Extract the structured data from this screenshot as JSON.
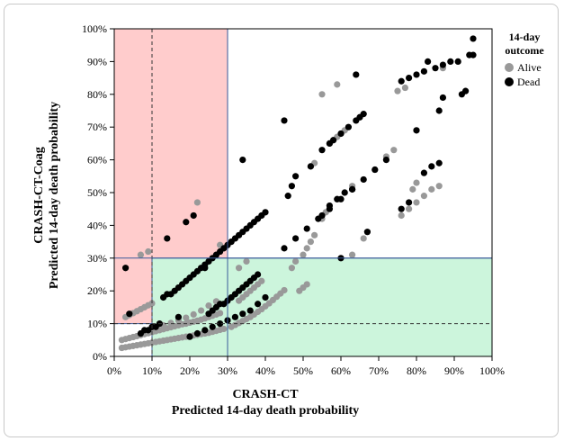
{
  "chart_data": {
    "type": "scatter",
    "xlabel_line1": "CRASH-CT",
    "xlabel_line2": "Predicted 14-day death probability",
    "ylabel_line1": "CRASH-CT-Coag",
    "ylabel_line2": "Predicted 14-day death probability",
    "xlim": [
      0,
      100
    ],
    "ylim": [
      0,
      100
    ],
    "x_ticks": [
      "0%",
      "10%",
      "20%",
      "30%",
      "40%",
      "50%",
      "60%",
      "70%",
      "80%",
      "90%",
      "100%"
    ],
    "y_ticks": [
      "0%",
      "10%",
      "20%",
      "30%",
      "40%",
      "50%",
      "60%",
      "70%",
      "80%",
      "90%",
      "100%"
    ],
    "grid": false,
    "legend": {
      "title_line1": "14-day",
      "title_line2": "outcome",
      "placement": "right",
      "entries": [
        {
          "label": "Alive",
          "color": "#999999"
        },
        {
          "label": "Dead",
          "color": "#000000"
        }
      ]
    },
    "shaded_regions": [
      {
        "x": [
          0,
          30
        ],
        "y": [
          10,
          100
        ],
        "color": "#ffcccc"
      },
      {
        "x": [
          10,
          100
        ],
        "y": [
          0,
          30
        ],
        "color": "#ccf5dc"
      }
    ],
    "reference_lines": [
      {
        "orientation": "vertical",
        "value": 10,
        "style": "dashed"
      },
      {
        "orientation": "horizontal",
        "value": 10,
        "style": "dashed"
      },
      {
        "orientation": "vertical",
        "value": 30,
        "style": "solid"
      },
      {
        "orientation": "horizontal",
        "value": 30,
        "style": "solid"
      }
    ],
    "series": [
      {
        "name": "Alive",
        "color": "#999999",
        "points": [
          [
            2,
            2.6
          ],
          [
            3,
            2.8
          ],
          [
            4,
            3.0
          ],
          [
            5,
            3.2
          ],
          [
            6,
            3.4
          ],
          [
            7,
            3.6
          ],
          [
            8,
            3.8
          ],
          [
            9,
            4.0
          ],
          [
            10,
            4.2
          ],
          [
            11,
            4.4
          ],
          [
            12,
            4.6
          ],
          [
            13,
            4.8
          ],
          [
            14,
            5.0
          ],
          [
            15,
            5.2
          ],
          [
            16,
            5.4
          ],
          [
            17,
            5.6
          ],
          [
            18,
            5.8
          ],
          [
            19,
            6.0
          ],
          [
            20,
            6.2
          ],
          [
            21,
            6.4
          ],
          [
            22,
            6.6
          ],
          [
            23,
            6.8
          ],
          [
            24,
            7.0
          ],
          [
            25,
            7.2
          ],
          [
            26,
            7.5
          ],
          [
            27,
            7.8
          ],
          [
            28,
            8.1
          ],
          [
            29,
            8.4
          ],
          [
            2,
            5.0
          ],
          [
            3,
            5.3
          ],
          [
            4,
            5.6
          ],
          [
            5,
            5.9
          ],
          [
            6,
            6.2
          ],
          [
            7,
            6.5
          ],
          [
            8,
            6.8
          ],
          [
            9,
            7.1
          ],
          [
            10,
            7.4
          ],
          [
            11,
            7.7
          ],
          [
            12,
            8.0
          ],
          [
            13,
            8.3
          ],
          [
            14,
            8.6
          ],
          [
            15,
            8.9
          ],
          [
            16,
            9.2
          ],
          [
            17,
            9.5
          ],
          [
            18,
            9.8
          ],
          [
            19,
            10.0
          ],
          [
            20,
            10.3
          ],
          [
            21,
            10.6
          ],
          [
            22,
            10.9
          ],
          [
            23,
            11.2
          ],
          [
            24,
            11.6
          ],
          [
            25,
            12.0
          ],
          [
            26,
            12.4
          ],
          [
            27,
            12.8
          ],
          [
            28,
            13.2
          ],
          [
            3,
            12.0
          ],
          [
            4,
            12.6
          ],
          [
            5,
            13.2
          ],
          [
            6,
            13.8
          ],
          [
            7,
            14.4
          ],
          [
            8,
            15.0
          ],
          [
            9,
            15.6
          ],
          [
            10,
            16.2
          ],
          [
            13,
            9.5
          ],
          [
            15,
            10.2
          ],
          [
            17,
            11.0
          ],
          [
            19,
            11.8
          ],
          [
            21,
            12.8
          ],
          [
            23,
            14.0
          ],
          [
            25,
            15.5
          ],
          [
            27,
            16.8
          ],
          [
            31,
            9.0
          ],
          [
            32,
            9.6
          ],
          [
            33,
            10.2
          ],
          [
            34,
            10.8
          ],
          [
            35,
            11.4
          ],
          [
            36,
            12.0
          ],
          [
            37,
            12.8
          ],
          [
            38,
            13.6
          ],
          [
            39,
            14.4
          ],
          [
            40,
            15.3
          ],
          [
            41,
            16.2
          ],
          [
            42,
            17.2
          ],
          [
            43,
            18.2
          ],
          [
            44,
            19.2
          ],
          [
            45,
            20.2
          ],
          [
            33,
            17
          ],
          [
            34,
            18
          ],
          [
            35,
            19
          ],
          [
            36,
            20
          ],
          [
            37,
            21
          ],
          [
            38,
            22
          ],
          [
            39,
            23
          ],
          [
            49,
            20
          ],
          [
            50,
            21
          ],
          [
            51,
            22
          ],
          [
            7,
            31
          ],
          [
            9,
            32
          ],
          [
            22,
            47
          ],
          [
            28,
            34
          ],
          [
            33,
            27
          ],
          [
            35,
            29
          ],
          [
            47,
            27
          ],
          [
            48,
            29
          ],
          [
            50,
            31
          ],
          [
            51,
            33
          ],
          [
            52,
            35
          ],
          [
            53,
            37
          ],
          [
            55,
            42
          ],
          [
            56,
            44
          ],
          [
            57,
            46
          ],
          [
            59,
            48
          ],
          [
            61,
            50
          ],
          [
            63,
            52
          ],
          [
            66,
            36
          ],
          [
            67,
            38
          ],
          [
            69,
            57
          ],
          [
            72,
            61
          ],
          [
            74,
            63
          ],
          [
            52,
            58
          ],
          [
            53,
            59
          ],
          [
            57,
            65
          ],
          [
            58,
            66
          ],
          [
            59,
            67
          ],
          [
            60,
            68
          ],
          [
            61,
            69
          ],
          [
            55,
            80
          ],
          [
            59,
            83
          ],
          [
            75,
            81
          ],
          [
            77,
            82
          ],
          [
            79,
            51
          ],
          [
            80,
            53
          ],
          [
            86,
            52
          ],
          [
            87,
            88
          ],
          [
            63,
            31
          ],
          [
            76,
            43
          ],
          [
            78,
            45
          ],
          [
            80,
            47
          ],
          [
            82,
            49
          ],
          [
            84,
            51
          ]
        ]
      },
      {
        "name": "Dead",
        "color": "#000000",
        "points": [
          [
            3,
            27
          ],
          [
            4,
            13
          ],
          [
            7,
            7
          ],
          [
            8,
            8
          ],
          [
            9,
            8
          ],
          [
            10,
            9
          ],
          [
            11,
            9
          ],
          [
            12,
            10
          ],
          [
            14,
            36
          ],
          [
            17,
            12
          ],
          [
            19,
            41
          ],
          [
            21,
            43
          ],
          [
            24,
            27
          ],
          [
            13,
            18
          ],
          [
            14,
            19
          ],
          [
            15,
            19
          ],
          [
            16,
            20
          ],
          [
            17,
            21
          ],
          [
            18,
            22
          ],
          [
            19,
            23
          ],
          [
            20,
            24
          ],
          [
            21,
            25
          ],
          [
            22,
            26
          ],
          [
            23,
            27
          ],
          [
            24,
            28
          ],
          [
            25,
            29
          ],
          [
            26,
            30
          ],
          [
            27,
            31
          ],
          [
            28,
            32
          ],
          [
            29,
            33
          ],
          [
            30,
            34
          ],
          [
            31,
            35
          ],
          [
            32,
            36
          ],
          [
            33,
            37
          ],
          [
            34,
            38
          ],
          [
            35,
            39
          ],
          [
            36,
            40
          ],
          [
            37,
            41
          ],
          [
            38,
            42
          ],
          [
            39,
            43
          ],
          [
            40,
            44
          ],
          [
            20,
            6
          ],
          [
            22,
            7
          ],
          [
            24,
            8
          ],
          [
            26,
            9
          ],
          [
            28,
            10
          ],
          [
            30,
            11
          ],
          [
            32,
            12
          ],
          [
            34,
            13
          ],
          [
            36,
            14
          ],
          [
            38,
            16
          ],
          [
            40,
            18
          ],
          [
            25,
            13
          ],
          [
            26,
            14
          ],
          [
            27,
            15
          ],
          [
            28,
            16
          ],
          [
            29,
            16
          ],
          [
            30,
            17
          ],
          [
            31,
            18
          ],
          [
            32,
            19
          ],
          [
            33,
            20
          ],
          [
            34,
            21
          ],
          [
            35,
            22
          ],
          [
            36,
            23
          ],
          [
            37,
            24
          ],
          [
            38,
            25
          ],
          [
            34,
            60
          ],
          [
            45,
            72
          ],
          [
            46,
            49
          ],
          [
            47,
            52
          ],
          [
            48,
            55
          ],
          [
            52,
            58
          ],
          [
            55,
            63
          ],
          [
            57,
            65
          ],
          [
            58,
            66
          ],
          [
            60,
            68
          ],
          [
            62,
            70
          ],
          [
            64,
            72
          ],
          [
            65,
            73
          ],
          [
            66,
            74
          ],
          [
            45,
            33
          ],
          [
            48,
            36
          ],
          [
            51,
            39
          ],
          [
            54,
            42
          ],
          [
            57,
            45
          ],
          [
            60,
            48
          ],
          [
            63,
            51
          ],
          [
            66,
            54
          ],
          [
            69,
            57
          ],
          [
            72,
            60
          ],
          [
            55,
            43
          ],
          [
            57,
            46
          ],
          [
            59,
            48
          ],
          [
            60,
            30
          ],
          [
            61,
            50
          ],
          [
            63,
            51
          ],
          [
            67,
            38
          ],
          [
            76,
            45
          ],
          [
            78,
            47
          ],
          [
            64,
            86
          ],
          [
            76,
            84
          ],
          [
            78,
            85
          ],
          [
            80,
            86
          ],
          [
            82,
            87
          ],
          [
            83,
            90
          ],
          [
            85,
            88
          ],
          [
            87,
            89
          ],
          [
            89,
            90
          ],
          [
            92,
            80
          ],
          [
            93,
            81
          ],
          [
            94,
            92
          ],
          [
            95,
            97
          ],
          [
            80,
            69
          ],
          [
            82,
            56
          ],
          [
            84,
            58
          ],
          [
            86,
            59
          ],
          [
            86,
            75
          ],
          [
            87,
            79
          ],
          [
            91,
            90
          ],
          [
            95,
            92
          ]
        ]
      }
    ]
  }
}
